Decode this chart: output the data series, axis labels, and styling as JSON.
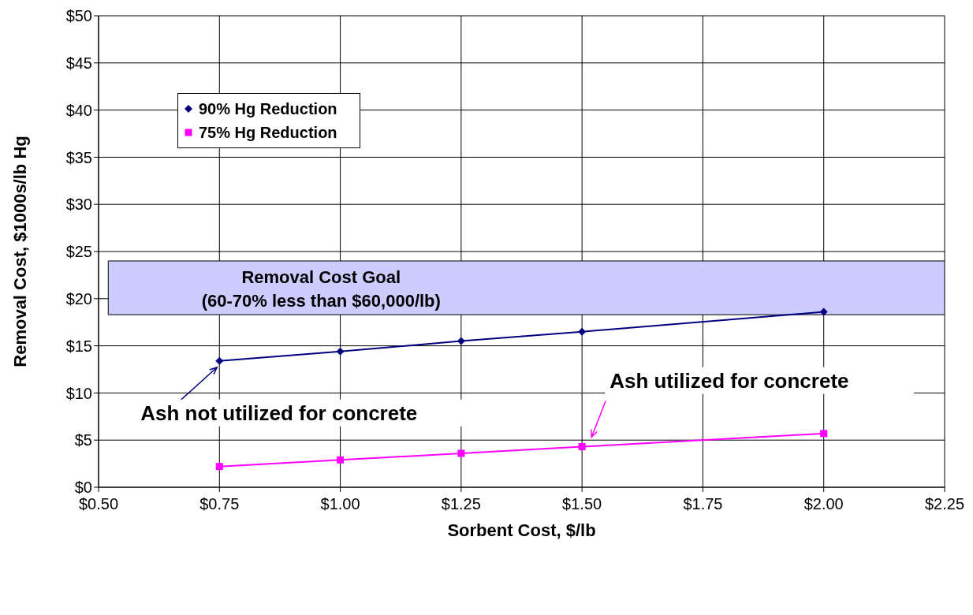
{
  "chart_data": {
    "type": "line",
    "xlabel": "Sorbent Cost, $/lb",
    "ylabel": "Removal Cost, $1000s/lb Hg",
    "x": [
      0.75,
      1.0,
      1.25,
      1.5,
      2.0
    ],
    "series": [
      {
        "name": "90% Hg Reduction",
        "color": "#000080",
        "marker": "diamond",
        "values": [
          13.4,
          14.4,
          15.5,
          16.5,
          18.6
        ]
      },
      {
        "name": "75% Hg Reduction",
        "color": "#ff00ff",
        "marker": "square",
        "values": [
          2.2,
          2.9,
          3.6,
          4.3,
          5.7
        ]
      }
    ],
    "xlim": [
      0.5,
      2.25
    ],
    "xticks": [
      {
        "value": 0.5,
        "label": "$0.50"
      },
      {
        "value": 0.75,
        "label": "$0.75"
      },
      {
        "value": 1.0,
        "label": "$1.00"
      },
      {
        "value": 1.25,
        "label": "$1.25"
      },
      {
        "value": 1.5,
        "label": "$1.50"
      },
      {
        "value": 1.75,
        "label": "$1.75"
      },
      {
        "value": 2.0,
        "label": "$2.00"
      },
      {
        "value": 2.25,
        "label": "$2.25"
      }
    ],
    "ylim": [
      0,
      50
    ],
    "yticks": [
      {
        "value": 0,
        "label": "$0"
      },
      {
        "value": 5,
        "label": "$5"
      },
      {
        "value": 10,
        "label": "$10"
      },
      {
        "value": 15,
        "label": "$15"
      },
      {
        "value": 20,
        "label": "$20"
      },
      {
        "value": 25,
        "label": "$25"
      },
      {
        "value": 30,
        "label": "$30"
      },
      {
        "value": 35,
        "label": "$35"
      },
      {
        "value": 40,
        "label": "$40"
      },
      {
        "value": 45,
        "label": "$45"
      },
      {
        "value": 50,
        "label": "$50"
      }
    ],
    "grid": true,
    "legend": "top left",
    "line_style": "solid",
    "bands": [
      {
        "axis": "y",
        "from": 18.3,
        "to": 24,
        "label": "Removal Cost Goal\n(60-70% less than $60,000/lb)",
        "color": "#ccccff"
      }
    ],
    "annotations": [
      {
        "text": "Ash not utilized for concrete",
        "x": 0.75,
        "y": 13.4
      },
      {
        "text": "Ash utilized for concrete",
        "x": 1.5,
        "y": 4.3
      }
    ]
  }
}
